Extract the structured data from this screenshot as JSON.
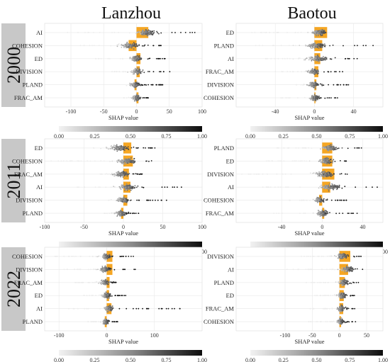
{
  "cities": [
    "Lanzhou",
    "Baotou"
  ],
  "years": [
    "2000",
    "2011",
    "2022"
  ],
  "colorbar": {
    "ticks": [
      "0.00",
      "0.25",
      "0.50",
      "0.75",
      "1.00"
    ]
  },
  "colors": {
    "bar": "#f5a623",
    "low": "#e6e6e6",
    "high": "#111111",
    "grid": "#e8e8e8"
  },
  "chart_data": [
    {
      "type": "scatter",
      "city": "Lanzhou",
      "year": "2000",
      "xlabel": "SHAP value",
      "xlim": [
        -140,
        100
      ],
      "xticks": [
        -100,
        -50,
        0,
        50,
        100
      ],
      "features": [
        {
          "name": "AI",
          "bar": 18,
          "spread": [
            -110,
            90
          ],
          "center": 15,
          "width": 45
        },
        {
          "name": "COHESION",
          "bar": -12,
          "spread": [
            -90,
            40
          ],
          "center": -10,
          "width": 40
        },
        {
          "name": "ED",
          "bar": 6,
          "spread": [
            -80,
            65
          ],
          "center": 0,
          "width": 30
        },
        {
          "name": "DIVISION",
          "bar": 5,
          "spread": [
            -40,
            60
          ],
          "center": 2,
          "width": 28
        },
        {
          "name": "PLAND",
          "bar": -3,
          "spread": [
            -30,
            40
          ],
          "center": -2,
          "width": 22
        },
        {
          "name": "FRAC_AM",
          "bar": 3,
          "spread": [
            -20,
            20
          ],
          "center": 0,
          "width": 18
        }
      ]
    },
    {
      "type": "scatter",
      "city": "Baotou",
      "year": "2000",
      "xlabel": "SHAP value",
      "xlim": [
        -80,
        70
      ],
      "xticks": [
        -40,
        0,
        40
      ],
      "features": [
        {
          "name": "ED",
          "bar": 13,
          "spread": [
            -65,
            15
          ],
          "center": 5,
          "width": 25
        },
        {
          "name": "PLAND",
          "bar": 8,
          "spread": [
            -70,
            60
          ],
          "center": 2,
          "width": 30
        },
        {
          "name": "AI",
          "bar": 6,
          "spread": [
            -50,
            50
          ],
          "center": 4,
          "width": 35
        },
        {
          "name": "FRAC_AM",
          "bar": 4,
          "spread": [
            -40,
            30
          ],
          "center": 0,
          "width": 20
        },
        {
          "name": "DIVISION",
          "bar": 2,
          "spread": [
            -20,
            40
          ],
          "center": -1,
          "width": 16
        },
        {
          "name": "COHESION",
          "bar": 1,
          "spread": [
            -35,
            25
          ],
          "center": 0,
          "width": 16
        }
      ]
    },
    {
      "type": "scatter",
      "city": "Lanzhou",
      "year": "2011",
      "xlabel": "SHAP value",
      "xlim": [
        -100,
        100
      ],
      "xticks": [
        -100,
        -50,
        0,
        50,
        100
      ],
      "features": [
        {
          "name": "ED",
          "bar": 10,
          "spread": [
            -40,
            45
          ],
          "center": -5,
          "width": 40
        },
        {
          "name": "COHESION",
          "bar": 12,
          "spread": [
            -95,
            55
          ],
          "center": 5,
          "width": 40
        },
        {
          "name": "FRAC_AM",
          "bar": 7,
          "spread": [
            -30,
            25
          ],
          "center": -2,
          "width": 30
        },
        {
          "name": "AI",
          "bar": 9,
          "spread": [
            -60,
            80
          ],
          "center": 5,
          "width": 35
        },
        {
          "name": "DIVISION",
          "bar": 5,
          "spread": [
            -20,
            55
          ],
          "center": 0,
          "width": 24
        },
        {
          "name": "PLAND",
          "bar": -3,
          "spread": [
            -25,
            20
          ],
          "center": -3,
          "width": 20
        }
      ]
    },
    {
      "type": "scatter",
      "city": "Baotou",
      "year": "2011",
      "xlabel": "SHAP value",
      "xlim": [
        -85,
        60
      ],
      "xticks": [
        -40,
        0,
        40
      ],
      "features": [
        {
          "name": "PLAND",
          "bar": 10,
          "spread": [
            -45,
            40
          ],
          "center": 8,
          "width": 25
        },
        {
          "name": "ED",
          "bar": 10,
          "spread": [
            -55,
            25
          ],
          "center": 4,
          "width": 22
        },
        {
          "name": "DIVISION",
          "bar": 12,
          "spread": [
            -80,
            25
          ],
          "center": 3,
          "width": 30
        },
        {
          "name": "AI",
          "bar": 8,
          "spread": [
            -60,
            55
          ],
          "center": 8,
          "width": 30
        },
        {
          "name": "COHESION",
          "bar": -3,
          "spread": [
            -35,
            25
          ],
          "center": -3,
          "width": 18
        },
        {
          "name": "FRAC_AM",
          "bar": 2,
          "spread": [
            -50,
            35
          ],
          "center": 0,
          "width": 18
        }
      ]
    },
    {
      "type": "scatter",
      "city": "Lanzhou",
      "year": "2022",
      "xlabel": "SHAP value",
      "xlim": [
        -130,
        200
      ],
      "xticks": [
        -100,
        0,
        100
      ],
      "features": [
        {
          "name": "COHESION",
          "bar": 12,
          "spread": [
            -110,
            60
          ],
          "center": 0,
          "width": 35
        },
        {
          "name": "DIVISION",
          "bar": 12,
          "spread": [
            -90,
            60
          ],
          "center": -3,
          "width": 35
        },
        {
          "name": "FRAC_AM",
          "bar": 6,
          "spread": [
            -70,
            30
          ],
          "center": -3,
          "width": 28
        },
        {
          "name": "ED",
          "bar": 5,
          "spread": [
            -50,
            40
          ],
          "center": 0,
          "width": 24
        },
        {
          "name": "AI",
          "bar": 10,
          "spread": [
            -80,
            170
          ],
          "center": 5,
          "width": 30
        },
        {
          "name": "PLAND",
          "bar": -4,
          "spread": [
            -40,
            25
          ],
          "center": -2,
          "width": 20
        }
      ]
    },
    {
      "type": "scatter",
      "city": "Baotou",
      "year": "2022",
      "xlabel": "SHAP value",
      "xlim": [
        -190,
        80
      ],
      "xticks": [
        -100,
        -50,
        0,
        50
      ],
      "features": [
        {
          "name": "DIVISION",
          "bar": 20,
          "spread": [
            -70,
            45
          ],
          "center": 5,
          "width": 35
        },
        {
          "name": "AI",
          "bar": 16,
          "spread": [
            -100,
            45
          ],
          "center": 15,
          "width": 35
        },
        {
          "name": "PLAND",
          "bar": 10,
          "spread": [
            -65,
            35
          ],
          "center": 8,
          "width": 28
        },
        {
          "name": "ED",
          "bar": 8,
          "spread": [
            -50,
            35
          ],
          "center": 5,
          "width": 24
        },
        {
          "name": "FRAC_AM",
          "bar": 7,
          "spread": [
            -55,
            30
          ],
          "center": 3,
          "width": 22
        },
        {
          "name": "COHESION",
          "bar": 3,
          "spread": [
            -60,
            30
          ],
          "center": 2,
          "width": 20
        }
      ]
    }
  ]
}
